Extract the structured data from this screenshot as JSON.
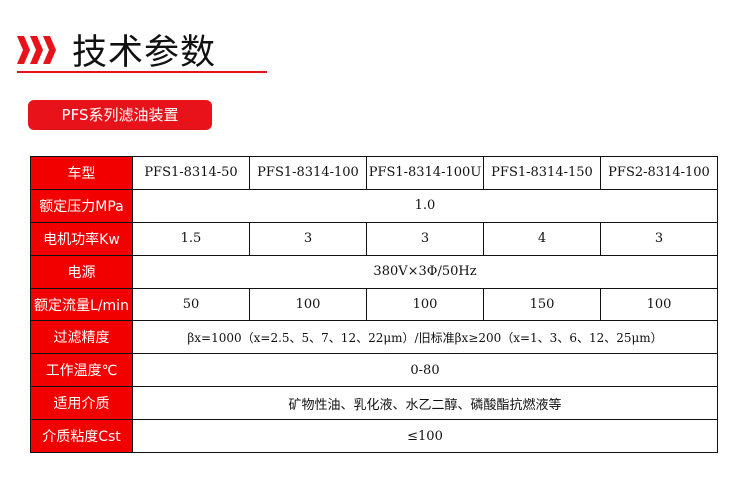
{
  "header": {
    "title": "技术参数",
    "badge": "PFS系列滤油装置"
  },
  "colors": {
    "accent": "#e8121a"
  },
  "table": {
    "models_label": "车型",
    "models": [
      "PFS1-8314-50",
      "PFS1-8314-100",
      "PFS1-8314-100U",
      "PFS1-8314-150",
      "PFS2-8314-100"
    ],
    "pressure": {
      "label": "额定压力MPa",
      "value": "1.0"
    },
    "power": {
      "label": "电机功率Kw",
      "values": [
        "1.5",
        "3",
        "3",
        "4",
        "3"
      ]
    },
    "supply": {
      "label": "电源",
      "value": "380V×3Φ/50Hz"
    },
    "flow": {
      "label": "额定流量L/min",
      "values": [
        "50",
        "100",
        "100",
        "150",
        "100"
      ]
    },
    "precision": {
      "label": "过滤精度",
      "value": "βx=1000（x=2.5、5、7、12、22μm）/旧标准βx≥200（x=1、3、6、12、25μm）"
    },
    "temp": {
      "label": "工作温度℃",
      "value": "0-80"
    },
    "media": {
      "label": "适用介质",
      "value": "矿物性油、乳化液、水乙二醇、磷酸酯抗燃液等"
    },
    "viscosity": {
      "label": "介质粘度Cst",
      "value": "≤100"
    }
  }
}
